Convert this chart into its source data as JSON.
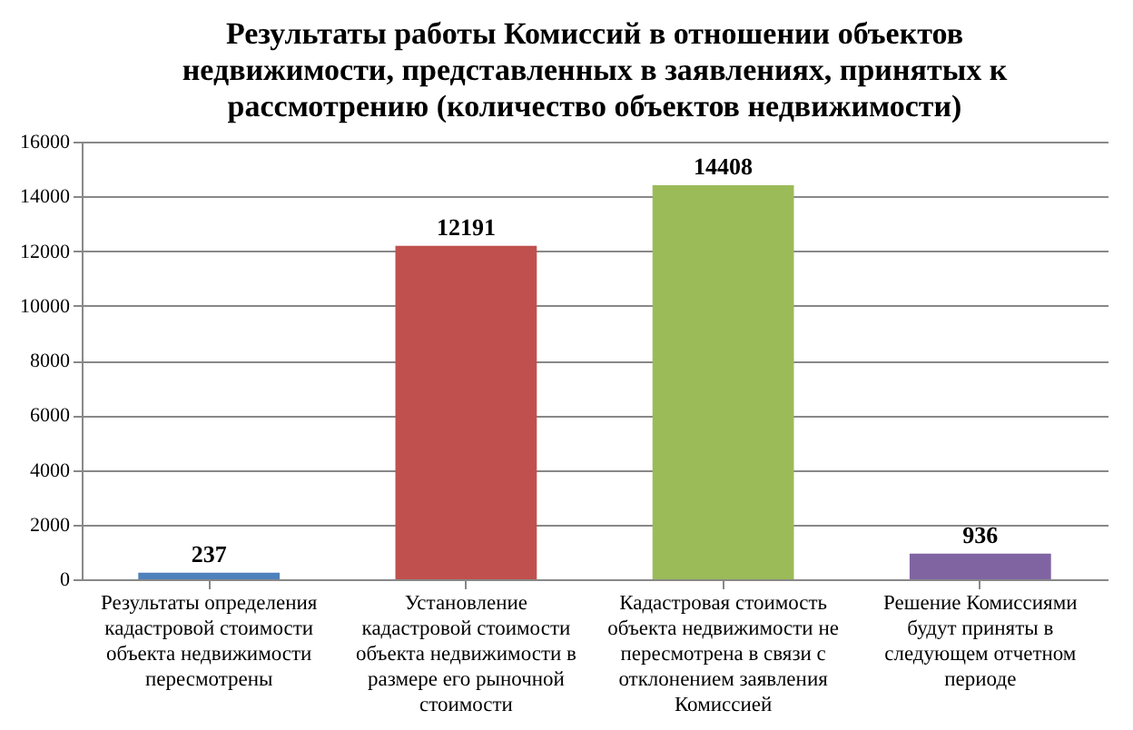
{
  "chart_data": {
    "type": "bar",
    "title": "Результаты работы Комиссий в отношении объектов недвижимости, представленных в заявлениях, принятых к рассмотрению (количество объектов недвижимости)",
    "categories": [
      "Результаты определения кадастровой стоимости объекта недвижимости пересмотрены",
      "Установление кадастровой стоимости объекта недвижимости в размере его рыночной стоимости",
      "Кадастровая стоимость объекта недвижимости не пересмотрена в связи с отклонением заявления Комиссией",
      "Решение Комиссиями будут приняты в следующем отчетном периоде"
    ],
    "values": [
      237,
      12191,
      14408,
      936
    ],
    "colors": [
      "#4f81bd",
      "#c0504d",
      "#9bbb59",
      "#8064a2"
    ],
    "ylim": [
      0,
      16000
    ],
    "yticks": [
      0,
      2000,
      4000,
      6000,
      8000,
      10000,
      12000,
      14000,
      16000
    ],
    "grid": "y",
    "data_labels": true,
    "legend": false
  }
}
